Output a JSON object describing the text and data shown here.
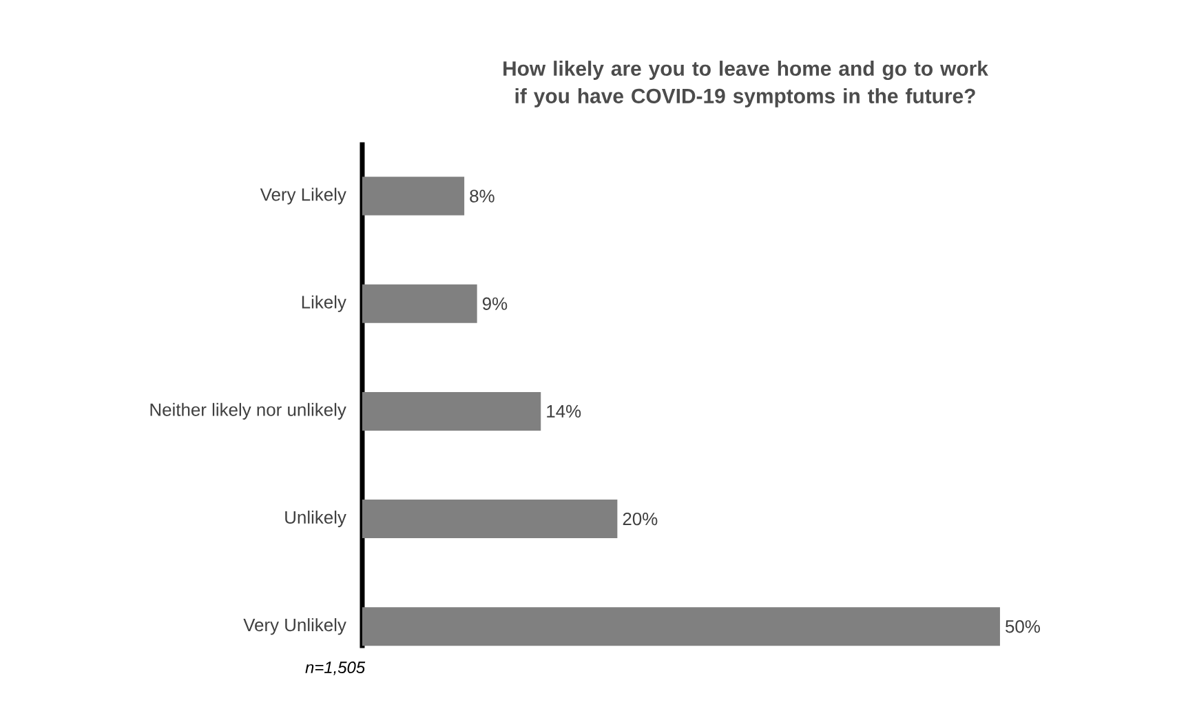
{
  "chart_data": {
    "type": "bar",
    "orientation": "horizontal",
    "title": "How likely are you to leave home and go to work\nif you have COVID-19 symptoms in the future?",
    "categories": [
      "Very Likely",
      "Likely",
      "Neither likely nor unlikely",
      "Unlikely",
      "Very Unlikely"
    ],
    "values": [
      8,
      9,
      14,
      20,
      50
    ],
    "value_labels": [
      "8%",
      "9%",
      "14%",
      "20%",
      "50%"
    ],
    "color": "#808080",
    "annotations": [
      "*n=1,505*"
    ]
  }
}
